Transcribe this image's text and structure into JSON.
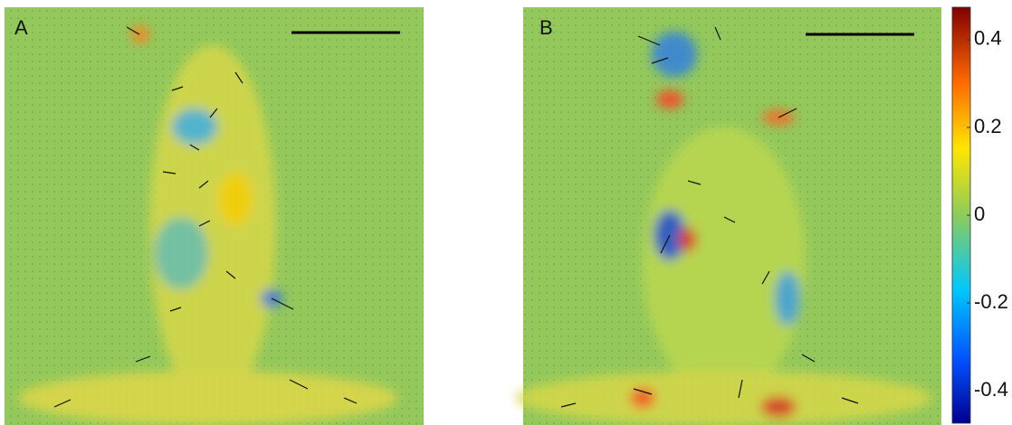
{
  "panels": [
    {
      "label": "A"
    },
    {
      "label": "B"
    }
  ],
  "colorbar": {
    "lim": [
      -0.474,
      0.474
    ],
    "ticks": [
      0.4,
      0.2,
      0,
      -0.2,
      -0.4
    ]
  }
}
